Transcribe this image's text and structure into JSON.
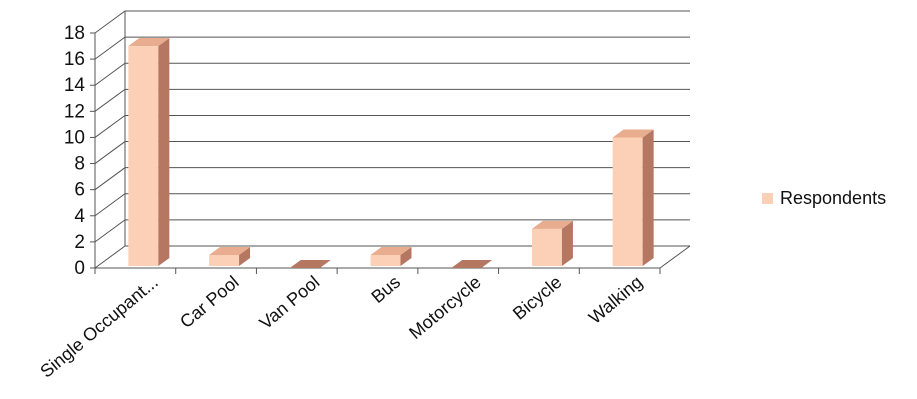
{
  "chart_data": {
    "type": "bar",
    "style": "3d-column",
    "categories": [
      "Single Occupant...",
      "Car Pool",
      "Van Pool",
      "Bus",
      "Motorcycle",
      "Bicycle",
      "Walking"
    ],
    "series": [
      {
        "name": "Respondents",
        "values": [
          17,
          1,
          0,
          1,
          0,
          3,
          10
        ]
      }
    ],
    "yticks": [
      0,
      2,
      4,
      6,
      8,
      10,
      12,
      14,
      16,
      18
    ],
    "ylim": [
      0,
      18
    ],
    "grid": true,
    "legend": "right",
    "colors": {
      "bar_front": "#fcd0b6",
      "bar_top": "#e8ac8f",
      "bar_side": "#b57662",
      "grid": "#555555",
      "legend_swatch": "#fcd0b6"
    }
  }
}
